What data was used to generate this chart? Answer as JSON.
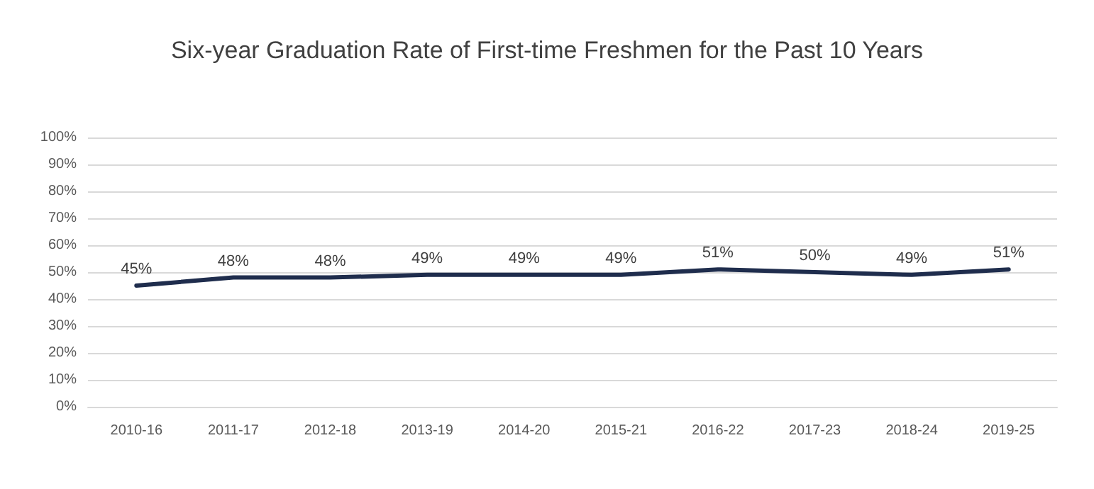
{
  "chart_data": {
    "type": "line",
    "title": "Six-year Graduation Rate of First-time Freshmen for the Past 10 Years",
    "categories": [
      "2010-16",
      "2011-17",
      "2012-18",
      "2013-19",
      "2014-20",
      "2015-21",
      "2016-22",
      "2017-23",
      "2018-24",
      "2019-25"
    ],
    "series": [
      {
        "color": "#1f2d4d",
        "values": [
          45,
          48,
          48,
          49,
          49,
          49,
          51,
          50,
          49,
          51
        ],
        "value_labels": [
          "45%",
          "48%",
          "48%",
          "49%",
          "49%",
          "49%",
          "51%",
          "50%",
          "49%",
          "51%"
        ]
      }
    ],
    "ylim": [
      0,
      100
    ],
    "yticks": [
      {
        "value": 0,
        "label": "0%"
      },
      {
        "value": 10,
        "label": "10%"
      },
      {
        "value": 20,
        "label": "20%"
      },
      {
        "value": 30,
        "label": "30%"
      },
      {
        "value": 40,
        "label": "40%"
      },
      {
        "value": 50,
        "label": "50%"
      },
      {
        "value": 60,
        "label": "60%"
      },
      {
        "value": 70,
        "label": "70%"
      },
      {
        "value": 80,
        "label": "80%"
      },
      {
        "value": 90,
        "label": "90%"
      },
      {
        "value": 100,
        "label": "100%"
      }
    ],
    "grid": "y",
    "marker": "none",
    "line_style": "solid"
  }
}
